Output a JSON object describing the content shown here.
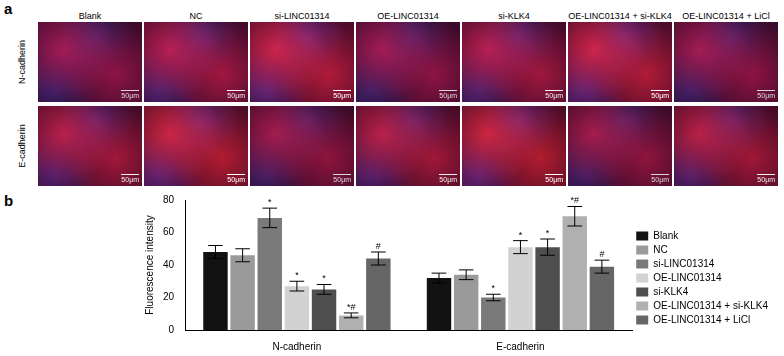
{
  "panel_labels": [
    "a",
    "b"
  ],
  "micrographs": {
    "columns": [
      "Blank",
      "NC",
      "si-LINC01314",
      "OE-LINC01314",
      "si-KLK4",
      "OE-LINC01314 + si-KLK4",
      "OE-LINC01314 + LiCl"
    ],
    "rows": [
      "N-cadherin",
      "E-cadherin"
    ],
    "scale_bar": "50μm"
  },
  "chart_data": {
    "type": "bar",
    "y_label": "Fluorescence intensity",
    "categories": [
      "N-cadherin",
      "E-cadherin"
    ],
    "series": [
      {
        "name": "Blank",
        "color": "#111111",
        "values": [
          48,
          32
        ],
        "errors": [
          4,
          3
        ],
        "marks": [
          null,
          null
        ]
      },
      {
        "name": "NC",
        "color": "#9a9a9a",
        "values": [
          46,
          34
        ],
        "errors": [
          4,
          3
        ],
        "marks": [
          null,
          null
        ]
      },
      {
        "name": "si-LINC01314",
        "color": "#7a7a7a",
        "values": [
          69,
          20
        ],
        "errors": [
          6,
          2
        ],
        "marks": [
          "*",
          "*"
        ]
      },
      {
        "name": "OE-LINC01314",
        "color": "#d2d2d2",
        "values": [
          27,
          51
        ],
        "errors": [
          3,
          4
        ],
        "marks": [
          "*",
          "*"
        ]
      },
      {
        "name": "si-KLK4",
        "color": "#4f4f4f",
        "values": [
          25,
          51
        ],
        "errors": [
          3,
          5
        ],
        "marks": [
          "*",
          "*"
        ]
      },
      {
        "name": "OE-LINC01314 + si-KLK4",
        "color": "#b0b0b0",
        "values": [
          9,
          70
        ],
        "errors": [
          1.5,
          6
        ],
        "marks": [
          "*#",
          "*#"
        ]
      },
      {
        "name": "OE-LINC01314 + LiCl",
        "color": "#666666",
        "values": [
          44,
          39
        ],
        "errors": [
          4,
          4
        ],
        "marks": [
          "#",
          "#"
        ]
      }
    ],
    "ylim": [
      0,
      80
    ],
    "yticks": [
      0,
      20,
      40,
      60,
      80
    ],
    "grid": false,
    "legend": "right"
  }
}
